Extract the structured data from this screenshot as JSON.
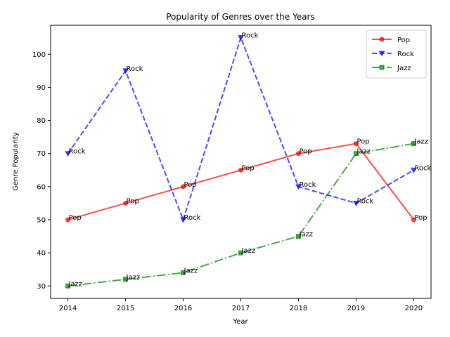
{
  "chart_data": {
    "type": "line",
    "title": "Popularity of Genres over the Years",
    "xlabel": "Year",
    "ylabel": "Genre Popularity",
    "x": [
      2014,
      2015,
      2016,
      2017,
      2018,
      2019,
      2020
    ],
    "xlim": [
      2013.7,
      2020.3
    ],
    "ylim": [
      26.25,
      108.75
    ],
    "yticks": [
      30,
      40,
      50,
      60,
      70,
      80,
      90,
      100
    ],
    "grid": false,
    "legend_position": "top-right",
    "series": [
      {
        "name": "Pop",
        "values": [
          50,
          55,
          60,
          65,
          70,
          73,
          50
        ],
        "color": "#ff0000",
        "dash": "solid",
        "marker": "circle"
      },
      {
        "name": "Rock",
        "values": [
          70,
          95,
          50,
          105,
          60,
          55,
          65
        ],
        "color": "#0000ff",
        "dash": "dashed",
        "marker": "triangle-down"
      },
      {
        "name": "Jazz",
        "values": [
          30,
          32,
          34,
          40,
          45,
          70,
          73
        ],
        "color": "#008000",
        "dash": "dashdot",
        "marker": "square"
      }
    ]
  }
}
